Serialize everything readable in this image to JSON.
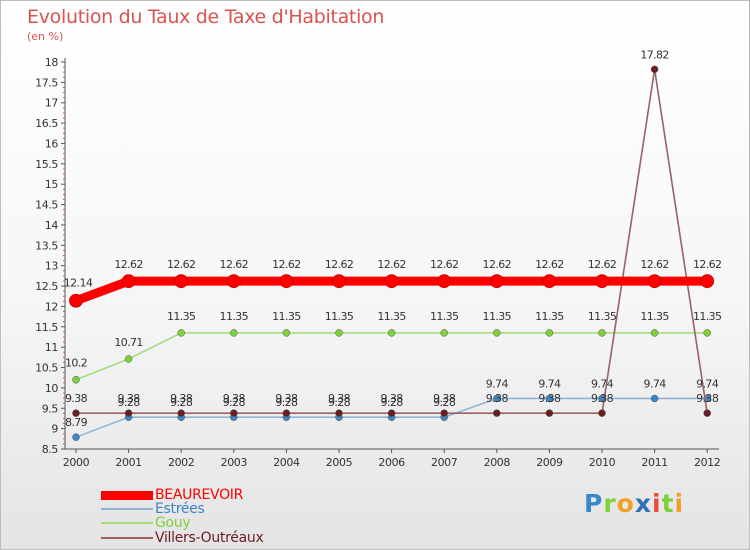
{
  "chart_data": {
    "type": "line",
    "title": "Evolution du Taux de Taxe d'Habitation",
    "subtitle": "(en %)",
    "xlabel": "",
    "ylabel": "",
    "ylim": [
      8.5,
      18
    ],
    "yticks": [
      "8.5",
      "9",
      "9.5",
      "10",
      "10.5",
      "11",
      "11.5",
      "12",
      "12.5",
      "13",
      "13.5",
      "14",
      "14.5",
      "15",
      "15.5",
      "16",
      "16.5",
      "17",
      "17.5",
      "18"
    ],
    "categories": [
      "2000",
      "2001",
      "2002",
      "2003",
      "2004",
      "2005",
      "2006",
      "2007",
      "2008",
      "2009",
      "2010",
      "2011",
      "2012"
    ],
    "series": [
      {
        "name": "BEAUREVOIR",
        "color": "#ff0000",
        "values": [
          12.14,
          12.62,
          12.62,
          12.62,
          12.62,
          12.62,
          12.62,
          12.62,
          12.62,
          12.62,
          12.62,
          12.62,
          12.62
        ],
        "labels": [
          "12.14",
          "12.62",
          "12.62",
          "12.62",
          "12.62",
          "12.62",
          "12.62",
          "12.62",
          "12.62",
          "12.62",
          "12.62",
          "12.62",
          "12.62"
        ]
      },
      {
        "name": "Estrées",
        "color": "#3a86c8",
        "line_color": "#8fb4d6",
        "values": [
          8.79,
          9.28,
          9.28,
          9.28,
          9.28,
          9.28,
          9.28,
          9.28,
          9.74,
          9.74,
          9.74,
          9.74,
          9.74
        ],
        "labels": [
          "8.79",
          "9.28",
          "9.28",
          "9.28",
          "9.28",
          "9.28",
          "9.28",
          "9.28",
          "9.74",
          "9.74",
          "9.74",
          "9.74",
          "9.74"
        ]
      },
      {
        "name": "Gouy",
        "color": "#7dd13b",
        "line_color": "#a8dc80",
        "values": [
          10.2,
          10.71,
          11.35,
          11.35,
          11.35,
          11.35,
          11.35,
          11.35,
          11.35,
          11.35,
          11.35,
          11.35,
          11.35
        ],
        "labels": [
          "10.2",
          "10.71",
          "11.35",
          "11.35",
          "11.35",
          "11.35",
          "11.35",
          "11.35",
          "11.35",
          "11.35",
          "11.35",
          "11.35",
          "11.35"
        ]
      },
      {
        "name": "Villers-Outréaux",
        "color": "#6b1e22",
        "line_color": "#9a6264",
        "values": [
          9.38,
          9.38,
          9.38,
          9.38,
          9.38,
          9.38,
          9.38,
          9.38,
          9.38,
          9.38,
          9.38,
          17.82,
          9.38
        ],
        "labels": [
          "9.38",
          "9.38",
          "9.38",
          "9.38",
          "9.38",
          "9.38",
          "9.38",
          "9.38",
          "9.38",
          "9.38",
          "9.38",
          "17.82",
          "9.38"
        ]
      }
    ],
    "legend_position": "bottom-left"
  },
  "logo": {
    "text": "Proxiti",
    "letters": [
      {
        "ch": "P",
        "color": "#3a86c8"
      },
      {
        "ch": "r",
        "color": "#7dd13b"
      },
      {
        "ch": "o",
        "color": "#f2a024"
      },
      {
        "ch": "x",
        "color": "#2f6fb8"
      },
      {
        "ch": "i",
        "color": "#e84c3d"
      },
      {
        "ch": "t",
        "color": "#7dd13b"
      },
      {
        "ch": "i",
        "color": "#f2a024"
      }
    ]
  }
}
